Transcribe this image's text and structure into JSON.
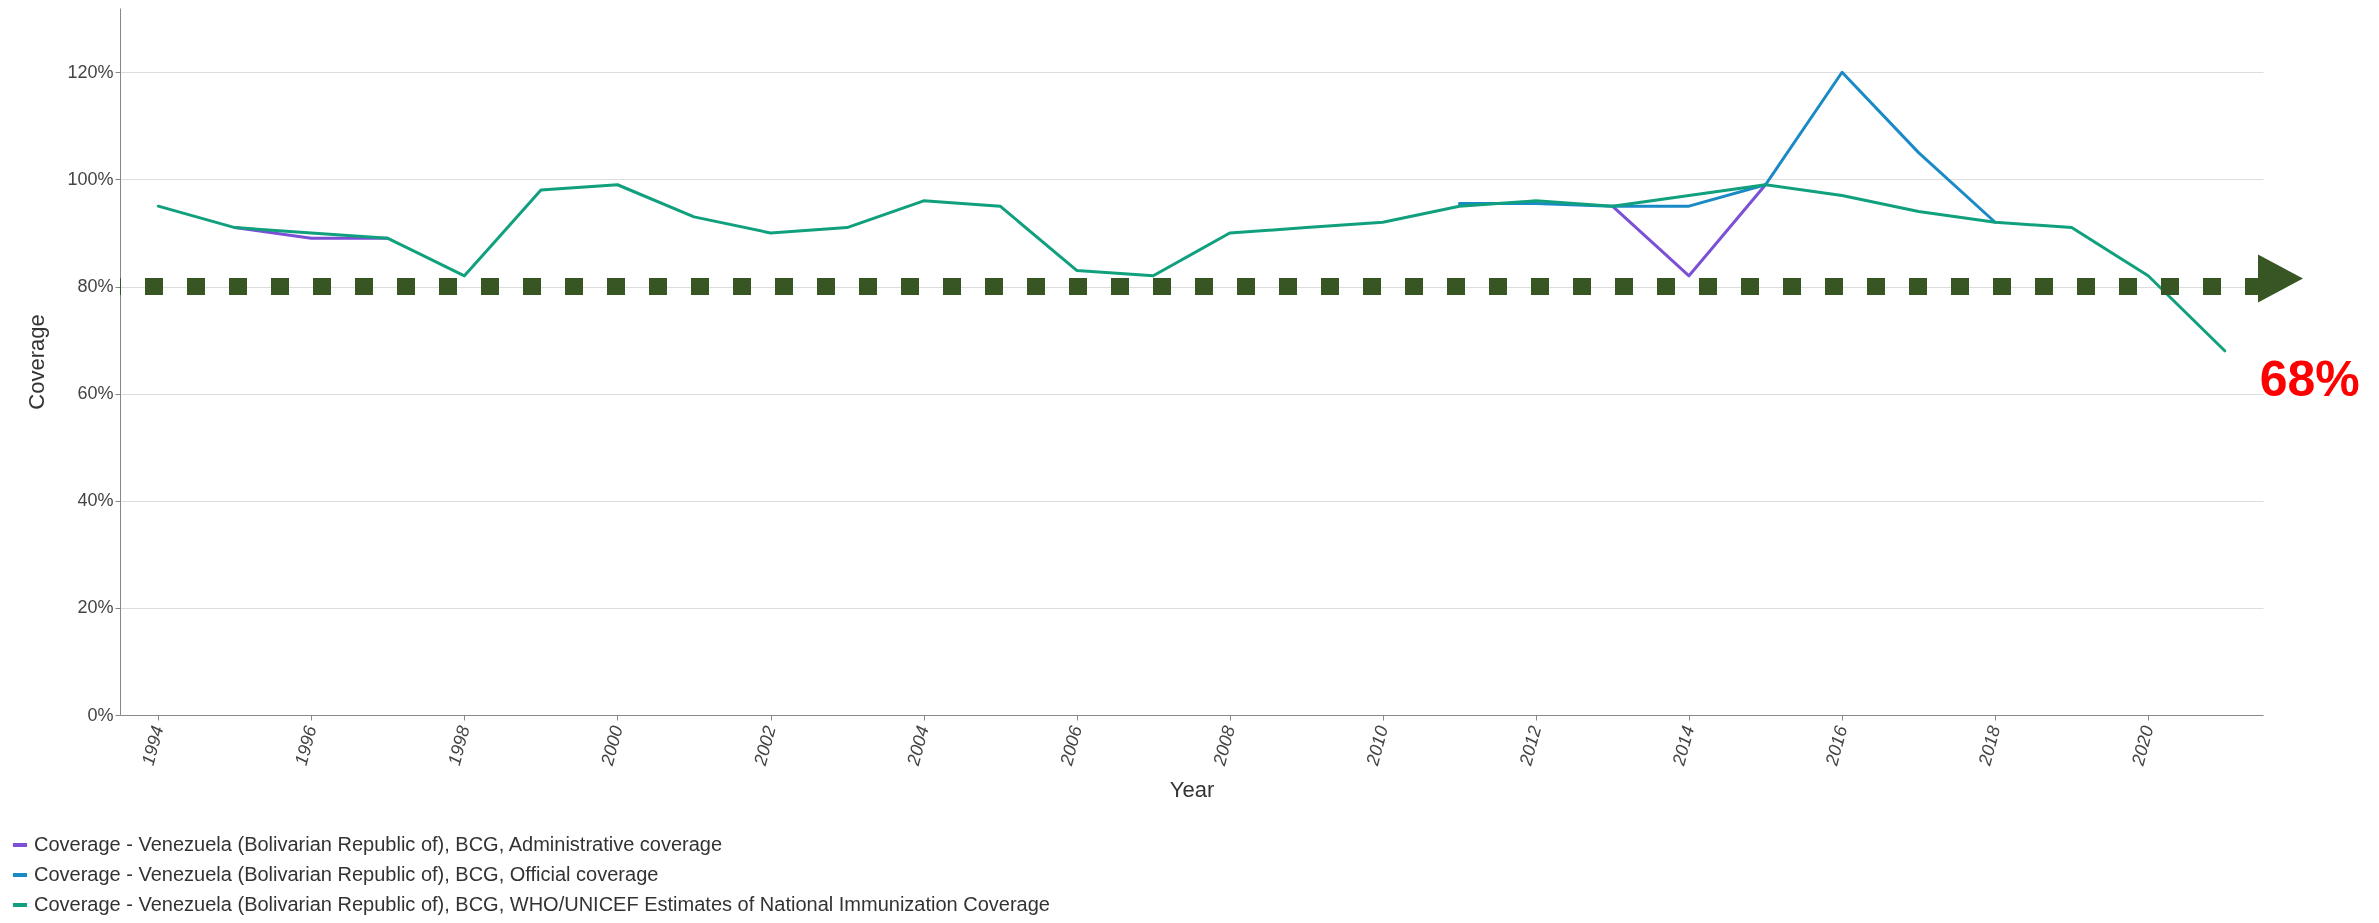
{
  "chart_data": {
    "type": "line",
    "xlabel": "Year",
    "ylabel": "Coverage",
    "x": [
      1994,
      1995,
      1996,
      1997,
      1998,
      1999,
      2000,
      2001,
      2002,
      2003,
      2004,
      2005,
      2006,
      2007,
      2008,
      2009,
      2010,
      2011,
      2012,
      2013,
      2014,
      2015,
      2016,
      2017,
      2018,
      2019,
      2020,
      2021
    ],
    "series": [
      {
        "name": "Coverage - Venezuela (Bolivarian Republic of), BCG, Administrative coverage",
        "color": "#7b4fd6",
        "values": [
          null,
          91,
          89,
          89,
          null,
          null,
          null,
          null,
          null,
          null,
          null,
          null,
          null,
          null,
          null,
          null,
          null,
          null,
          null,
          95,
          82,
          99,
          null,
          null,
          null,
          null,
          null,
          null
        ]
      },
      {
        "name": "Coverage - Venezuela (Bolivarian Republic of), BCG, Official coverage",
        "color": "#1a8ac6",
        "values": [
          null,
          null,
          null,
          null,
          null,
          null,
          null,
          null,
          null,
          null,
          null,
          null,
          null,
          null,
          null,
          null,
          null,
          95.5,
          95.5,
          95,
          95,
          99,
          120,
          105,
          92,
          null,
          null,
          null
        ]
      },
      {
        "name": "Coverage - Venezuela (Bolivarian Republic of), BCG, WHO/UNICEF Estimates of National Immunization Coverage",
        "color": "#10a07e",
        "values": [
          95,
          91,
          90,
          89,
          82,
          98,
          99,
          93,
          90,
          91,
          96,
          95,
          83,
          82,
          90,
          91,
          92,
          95,
          96,
          95,
          97,
          99,
          97,
          94,
          92,
          91,
          82,
          68
        ]
      }
    ],
    "xlim": [
      1993.5,
      2021.5
    ],
    "xticks": [
      1994,
      1996,
      1998,
      2000,
      2002,
      2004,
      2006,
      2008,
      2010,
      2012,
      2014,
      2016,
      2018,
      2020
    ],
    "ylim": [
      0,
      132
    ],
    "yticks": [
      {
        "value": 0,
        "label": "0%"
      },
      {
        "value": 20,
        "label": "20%"
      },
      {
        "value": 40,
        "label": "40%"
      },
      {
        "value": 60,
        "label": "60%"
      },
      {
        "value": 80,
        "label": "80%"
      },
      {
        "value": 100,
        "label": "100%"
      },
      {
        "value": 120,
        "label": "120%"
      }
    ],
    "grid": "y",
    "legend": "bottom left",
    "marker": "none",
    "line_style": "solid",
    "ref_lines": [
      {
        "axis": "y",
        "value": 80,
        "color": "#375623",
        "line_style": "dotted"
      }
    ],
    "annotations": [
      {
        "text": "68%",
        "x": 2021,
        "y": 68
      }
    ]
  }
}
